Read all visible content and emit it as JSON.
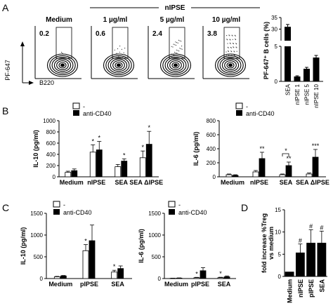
{
  "panelA": {
    "letter": "A",
    "group_label": "nIPSE",
    "facs": [
      {
        "title": "Medium",
        "pct": "0.2"
      },
      {
        "title": "1 µg/ml",
        "pct": "0.6"
      },
      {
        "title": "5 µg/ml",
        "pct": "2.4"
      },
      {
        "title": "10 µg/ml",
        "pct": "3.8"
      }
    ],
    "y_axis_label": "PF-647",
    "x_axis_label": "B220"
  },
  "panelB": {
    "letter": "B",
    "legend": {
      "open_label": "-",
      "filled_label": "anti-CD40"
    }
  },
  "panelC": {
    "letter": "C",
    "legend": {
      "open_label": "-",
      "filled_label": "anti-CD40"
    }
  },
  "panelD": {
    "letter": "D"
  },
  "chart_data": [
    {
      "id": "A-bar",
      "type": "bar",
      "categories": [
        "SEA",
        "nIPSE 1",
        "nIPSE 5",
        "nIPSE 10"
      ],
      "values": [
        31,
        0.7,
        1.8,
        3.4
      ],
      "errors": [
        1,
        0.1,
        0.2,
        0.3
      ],
      "ylabel": "PF-647⁺ B cells (%)",
      "ybreak": [
        5,
        25
      ],
      "yticks_low": [
        "0",
        "5"
      ],
      "yticks_high": [
        "30",
        "35"
      ],
      "ylim": [
        0,
        35
      ]
    },
    {
      "id": "B-IL10",
      "type": "bar",
      "categories": [
        "Medium",
        "nIPSE",
        "SEA",
        "SEA ΔIPSE"
      ],
      "series": [
        {
          "name": "-",
          "values": [
            80,
            440,
            180,
            340
          ],
          "errors": [
            20,
            130,
            40,
            120
          ]
        },
        {
          "name": "anti-CD40",
          "values": [
            110,
            480,
            280,
            580
          ],
          "errors": [
            30,
            150,
            40,
            230
          ]
        }
      ],
      "annotations": [
        {
          "category": 1,
          "series": 0,
          "text": "*"
        },
        {
          "category": 1,
          "series": 1,
          "text": "*"
        },
        {
          "category": 2,
          "series": 1,
          "text": "*"
        },
        {
          "category": 3,
          "series": 0,
          "text": "*"
        },
        {
          "category": 3,
          "series": 1,
          "text": "*"
        }
      ],
      "ylabel": "IL-10  (pg/ml)",
      "yticks": [
        0,
        200,
        400,
        600,
        800,
        1000
      ],
      "ylim": [
        0,
        1000
      ]
    },
    {
      "id": "B-IL6",
      "type": "bar",
      "categories": [
        "Medium",
        "nIPSE",
        "SEA",
        "SEA ΔIPSE"
      ],
      "series": [
        {
          "name": "-",
          "values": [
            30,
            70,
            30,
            40
          ],
          "errors": [
            10,
            20,
            10,
            15
          ]
        },
        {
          "name": "anti-CD40",
          "values": [
            20,
            260,
            160,
            280
          ],
          "errors": [
            10,
            90,
            50,
            110
          ]
        }
      ],
      "annotations": [
        {
          "category": 1,
          "series": 1,
          "text": "**"
        },
        {
          "category": 2,
          "series": 1,
          "text": "**"
        },
        {
          "category": 3,
          "series": 1,
          "text": "***"
        },
        {
          "category": 2,
          "bracket": true,
          "text": "*"
        }
      ],
      "ylabel": "IL-6  (pg/ml)",
      "yticks": [
        0,
        200,
        400,
        600,
        800
      ],
      "ylim": [
        0,
        800
      ]
    },
    {
      "id": "C-IL10",
      "type": "bar",
      "categories": [
        "Medium",
        "pIPSE",
        "SEA"
      ],
      "series": [
        {
          "name": "-",
          "values": [
            40,
            640,
            150
          ],
          "errors": [
            10,
            140,
            40
          ]
        },
        {
          "name": "anti-CD40",
          "values": [
            60,
            870,
            230
          ],
          "errors": [
            10,
            360,
            60
          ]
        }
      ],
      "annotations": [
        {
          "category": 1,
          "series": 0,
          "text": "*"
        },
        {
          "category": 2,
          "series": 0,
          "text": "*"
        }
      ],
      "ylabel": "IL-10 (pg/ml)",
      "yticks": [
        0,
        500,
        1000,
        1500
      ],
      "ylim": [
        0,
        1500
      ]
    },
    {
      "id": "C-IL6",
      "type": "bar",
      "categories": [
        "Medium",
        "pIPSE",
        "SEA"
      ],
      "series": [
        {
          "name": "-",
          "values": [
            5,
            20,
            20
          ],
          "errors": [
            3,
            8,
            10
          ]
        },
        {
          "name": "anti-CD40",
          "values": [
            10,
            180,
            40
          ],
          "errors": [
            5,
            70,
            20
          ]
        }
      ],
      "annotations": [
        {
          "category": 1,
          "series": 0,
          "text": "*"
        },
        {
          "category": 2,
          "series": 0,
          "text": "*"
        }
      ],
      "ylabel": "IL-6 (pg/ml)",
      "yticks": [
        0,
        500,
        1000,
        1500
      ],
      "ylim": [
        0,
        1500
      ]
    },
    {
      "id": "D",
      "type": "bar",
      "categories": [
        "Medium",
        "nIPSE",
        "pIPSE",
        "SEA"
      ],
      "values": [
        1,
        5.3,
        7.5,
        7.5
      ],
      "errors": [
        0,
        2,
        3,
        2.7
      ],
      "annotations": [
        {
          "category": 1,
          "text": "#"
        },
        {
          "category": 2,
          "text": "#"
        },
        {
          "category": 3,
          "text": "#"
        }
      ],
      "ylabel": "fold increase %Treg\nvs medium",
      "yticks": [
        0,
        5,
        10,
        15
      ],
      "ylim": [
        0,
        15
      ]
    }
  ]
}
